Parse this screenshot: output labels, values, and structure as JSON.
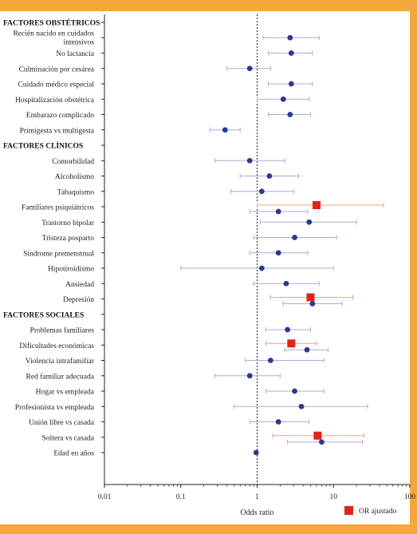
{
  "chart_data": {
    "type": "forest",
    "xlabel": "Odds ratio",
    "xscale": "log",
    "xlim": [
      0.01,
      100
    ],
    "xticks": [
      "0.01",
      "0.1",
      "1",
      "10",
      "100"
    ],
    "reference_line": 1,
    "legend": {
      "label": "OR ajustado",
      "placement": "bottom-right"
    },
    "colors": {
      "crude_point": "#2b3990",
      "crude_ci": "#a9acd8",
      "adjusted_point": "#e2231a",
      "adjusted_ci": "#f0a090",
      "bars": "#f4a83a"
    },
    "rows": [
      {
        "kind": "section",
        "label": "FACTORES OBSTÉTRICOS"
      },
      {
        "kind": "item",
        "label": [
          "Recién nacido en cuidados",
          "intensivos"
        ],
        "or": 2.7,
        "lo": 1.2,
        "hi": 6.5
      },
      {
        "kind": "item",
        "label": "No lactancia",
        "or": 2.8,
        "lo": 1.4,
        "hi": 5.3
      },
      {
        "kind": "item",
        "label": "Culminación por cesárea",
        "or": 0.8,
        "lo": 0.4,
        "hi": 1.5
      },
      {
        "kind": "item",
        "label": "Cuidado médico especial",
        "or": 2.8,
        "lo": 1.4,
        "hi": 5.3
      },
      {
        "kind": "item",
        "label": "Hospitalización obstétrica",
        "or": 2.2,
        "lo": 1.0,
        "hi": 4.8
      },
      {
        "kind": "item",
        "label": "Embarazo complicado",
        "or": 2.7,
        "lo": 1.4,
        "hi": 5.0
      },
      {
        "kind": "item",
        "label": "Primigesta vs multigesta",
        "or": 0.38,
        "lo": 0.24,
        "hi": 0.6
      },
      {
        "kind": "section",
        "label": "FACTORES CLÍNICOS"
      },
      {
        "kind": "item",
        "label": "Comorbilidad",
        "or": 0.8,
        "lo": 0.28,
        "hi": 2.3
      },
      {
        "kind": "item",
        "label": "Alcoholismo",
        "or": 1.45,
        "lo": 0.6,
        "hi": 3.5
      },
      {
        "kind": "item",
        "label": "Tabaquismo",
        "or": 1.15,
        "lo": 0.45,
        "hi": 3.0
      },
      {
        "kind": "item",
        "label": "Familiares psiquiátricos",
        "or": 1.9,
        "lo": 0.8,
        "hi": 4.6,
        "adj": 6.0,
        "adj_lo": 1.0,
        "adj_hi": 45
      },
      {
        "kind": "item",
        "label": "Trastorno bipolar",
        "or": 4.8,
        "lo": 1.1,
        "hi": 20
      },
      {
        "kind": "item",
        "label": "Tristeza posparto",
        "or": 3.1,
        "lo": 0.9,
        "hi": 11
      },
      {
        "kind": "item",
        "label": "Síndrome premenstrual",
        "or": 1.9,
        "lo": 0.8,
        "hi": 4.6
      },
      {
        "kind": "item",
        "label": "Hipotiroidismo",
        "or": 1.15,
        "lo": 0.1,
        "hi": 10
      },
      {
        "kind": "item",
        "label": "Ansiedad",
        "or": 2.4,
        "lo": 0.9,
        "hi": 6.5
      },
      {
        "kind": "item",
        "label": "Depresión",
        "or": 5.3,
        "lo": 2.2,
        "hi": 13,
        "adj": 5.0,
        "adj_lo": 1.5,
        "adj_hi": 18
      },
      {
        "kind": "section",
        "label": "FACTORES SOCIALES"
      },
      {
        "kind": "item",
        "label": "Problemas familiares",
        "or": 2.5,
        "lo": 1.3,
        "hi": 5.0
      },
      {
        "kind": "item",
        "label": "Dificultades económicas",
        "or": 4.5,
        "lo": 2.3,
        "hi": 8.5,
        "adj": 2.8,
        "adj_lo": 1.3,
        "adj_hi": 6.0
      },
      {
        "kind": "item",
        "label": "Violencia intrafamiliar",
        "or": 1.5,
        "lo": 0.7,
        "hi": 7.5
      },
      {
        "kind": "item",
        "label": "Red familiar adecuada",
        "or": 0.8,
        "lo": 0.28,
        "hi": 2.0
      },
      {
        "kind": "item",
        "label": "Hogar vs empleada",
        "or": 3.1,
        "lo": 1.3,
        "hi": 7.5
      },
      {
        "kind": "item",
        "label": "Profesionista vs empleada",
        "or": 3.8,
        "lo": 0.5,
        "hi": 28
      },
      {
        "kind": "item",
        "label": "Unión libre vs casada",
        "or": 1.9,
        "lo": 0.8,
        "hi": 4.8
      },
      {
        "kind": "item",
        "label": "Soltera vs casada",
        "or": 7.0,
        "lo": 2.5,
        "hi": 24,
        "adj": 6.2,
        "adj_lo": 1.6,
        "adj_hi": 25
      },
      {
        "kind": "item",
        "label": "Edad en años",
        "or": 0.97,
        "lo": 0.93,
        "hi": 1.02
      }
    ]
  }
}
